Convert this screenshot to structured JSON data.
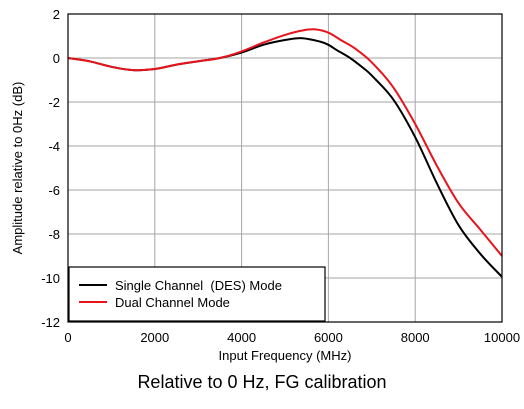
{
  "chart_data": {
    "type": "line",
    "xlabel": "Input Frequency  (MHz)",
    "ylabel": "Amplitude relative to 0Hz  (dB)",
    "xlim": [
      0,
      10000
    ],
    "ylim": [
      -12,
      2
    ],
    "x_ticks": [
      0,
      2000,
      4000,
      6000,
      8000,
      10000
    ],
    "y_ticks": [
      2,
      0,
      -2,
      -4,
      -6,
      -8,
      -10,
      -12
    ],
    "grid": true,
    "legend_position": "bottom-left",
    "series": [
      {
        "name": "Single Channel  (DES) Mode",
        "color": "#000000",
        "x": [
          0,
          500,
          1000,
          1500,
          2000,
          2500,
          3000,
          3500,
          4000,
          4500,
          5000,
          5400,
          5800,
          6000,
          6200,
          6500,
          6800,
          7000,
          7500,
          8000,
          8500,
          9000,
          9500,
          10000
        ],
        "y": [
          0,
          -0.15,
          -0.4,
          -0.55,
          -0.5,
          -0.3,
          -0.15,
          0,
          0.25,
          0.6,
          0.82,
          0.9,
          0.75,
          0.6,
          0.35,
          0,
          -0.45,
          -0.8,
          -1.9,
          -3.6,
          -5.7,
          -7.6,
          -8.9,
          -9.95
        ]
      },
      {
        "name": "Dual Channel Mode",
        "color": "#e8141b",
        "x": [
          0,
          500,
          1000,
          1500,
          2000,
          2500,
          3000,
          3500,
          4000,
          4500,
          5000,
          5400,
          5700,
          6000,
          6300,
          6600,
          7000,
          7500,
          8000,
          8500,
          9000,
          9500,
          10000
        ],
        "y": [
          0,
          -0.15,
          -0.4,
          -0.55,
          -0.5,
          -0.3,
          -0.15,
          0,
          0.3,
          0.7,
          1.05,
          1.25,
          1.3,
          1.15,
          0.8,
          0.45,
          -0.2,
          -1.35,
          -3.0,
          -4.9,
          -6.6,
          -7.8,
          -9.0
        ]
      }
    ]
  },
  "caption": "Relative to 0 Hz, FG calibration"
}
